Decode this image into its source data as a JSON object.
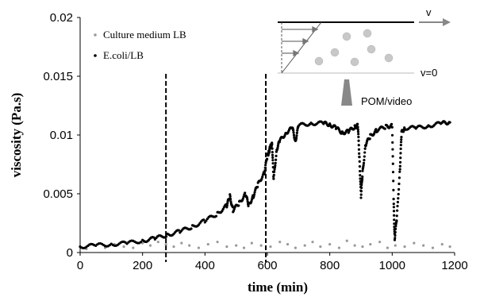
{
  "chart_data": {
    "type": "scatter",
    "title": "",
    "xlabel": "time (min)",
    "ylabel": "viscosity (Pa.s)",
    "xlim": [
      0,
      1200
    ],
    "ylim": [
      0,
      0.02
    ],
    "x_ticks": [
      0,
      200,
      400,
      600,
      800,
      1000,
      1200
    ],
    "y_ticks": [
      0,
      0.005,
      0.01,
      0.015,
      0.02
    ],
    "x_tick_labels": [
      "0",
      "200",
      "400",
      "600",
      "800",
      "1000",
      "1200"
    ],
    "y_tick_labels": [
      "0",
      "0.005",
      "0.01",
      "0.015",
      "0.02"
    ],
    "grid": false,
    "legend_position": "top-left",
    "vertical_markers": [
      {
        "x": 275,
        "style": "dashed",
        "color": "#000000"
      },
      {
        "x": 595,
        "style": "dashed",
        "color": "#000000"
      }
    ],
    "series": [
      {
        "name": "Culture medium LB",
        "color": "#999999",
        "marker": "dot-small",
        "points": [
          [
            20,
            0.0003
          ],
          [
            50,
            0.0006
          ],
          [
            80,
            0.0004
          ],
          [
            110,
            0.0007
          ],
          [
            140,
            0.0005
          ],
          [
            170,
            0.0004
          ],
          [
            200,
            0.0008
          ],
          [
            225,
            0.0006
          ],
          [
            250,
            0.0009
          ],
          [
            275,
            0.0007
          ],
          [
            300,
            0.0005
          ],
          [
            325,
            0.0008
          ],
          [
            350,
            0.0006
          ],
          [
            380,
            0.0004
          ],
          [
            410,
            0.0007
          ],
          [
            440,
            0.0009
          ],
          [
            470,
            0.0005
          ],
          [
            500,
            0.0006
          ],
          [
            525,
            0.0004
          ],
          [
            550,
            0.0008
          ],
          [
            580,
            0.0006
          ],
          [
            610,
            0.0005
          ],
          [
            640,
            0.0009
          ],
          [
            665,
            0.0007
          ],
          [
            690,
            0.0004
          ],
          [
            720,
            0.0006
          ],
          [
            745,
            0.0009
          ],
          [
            770,
            0.0005
          ],
          [
            800,
            0.0007
          ],
          [
            830,
            0.0004
          ],
          [
            855,
            0.001
          ],
          [
            880,
            0.0006
          ],
          [
            905,
            0.0005
          ],
          [
            930,
            0.0007
          ],
          [
            960,
            0.0009
          ],
          [
            985,
            0.0004
          ],
          [
            1010,
            0.0006
          ],
          [
            1040,
            0.0005
          ],
          [
            1070,
            0.0008
          ],
          [
            1100,
            0.0006
          ],
          [
            1130,
            0.0004
          ],
          [
            1160,
            0.0007
          ],
          [
            1185,
            0.0005
          ]
        ]
      },
      {
        "name": "E.coli/LB",
        "color": "#000000",
        "marker": "dot",
        "points": [
          [
            0,
            0.0005
          ],
          [
            50,
            0.0006
          ],
          [
            100,
            0.0007
          ],
          [
            150,
            0.0008
          ],
          [
            200,
            0.001
          ],
          [
            240,
            0.0012
          ],
          [
            280,
            0.0015
          ],
          [
            320,
            0.0018
          ],
          [
            360,
            0.0022
          ],
          [
            400,
            0.0027
          ],
          [
            440,
            0.0033
          ],
          [
            470,
            0.004
          ],
          [
            480,
            0.0048
          ],
          [
            490,
            0.0036
          ],
          [
            510,
            0.0042
          ],
          [
            530,
            0.005
          ],
          [
            540,
            0.004
          ],
          [
            555,
            0.0048
          ],
          [
            570,
            0.0058
          ],
          [
            590,
            0.0068
          ],
          [
            600,
            0.0082
          ],
          [
            605,
            0.0086
          ],
          [
            610,
            0.009
          ],
          [
            615,
            0.0093
          ],
          [
            620,
            0.0062
          ],
          [
            630,
            0.0088
          ],
          [
            640,
            0.0095
          ],
          [
            660,
            0.0102
          ],
          [
            680,
            0.0106
          ],
          [
            690,
            0.0095
          ],
          [
            700,
            0.0108
          ],
          [
            740,
            0.011
          ],
          [
            780,
            0.011
          ],
          [
            800,
            0.0109
          ],
          [
            820,
            0.0106
          ],
          [
            840,
            0.0102
          ],
          [
            860,
            0.0103
          ],
          [
            880,
            0.0107
          ],
          [
            890,
            0.0108
          ],
          [
            895,
            0.008
          ],
          [
            900,
            0.0048
          ],
          [
            905,
            0.0068
          ],
          [
            915,
            0.0092
          ],
          [
            930,
            0.0099
          ],
          [
            950,
            0.0104
          ],
          [
            980,
            0.0107
          ],
          [
            1000,
            0.0108
          ],
          [
            1005,
            0.004
          ],
          [
            1008,
            0.0012
          ],
          [
            1015,
            0.003
          ],
          [
            1025,
            0.0072
          ],
          [
            1030,
            0.0102
          ],
          [
            1040,
            0.0106
          ],
          [
            1080,
            0.0106
          ],
          [
            1120,
            0.0108
          ],
          [
            1160,
            0.011
          ],
          [
            1185,
            0.0111
          ]
        ]
      }
    ],
    "inset": {
      "labels": {
        "top_velocity": "v",
        "bottom_velocity": "v=0",
        "device": "POM/video"
      }
    }
  }
}
